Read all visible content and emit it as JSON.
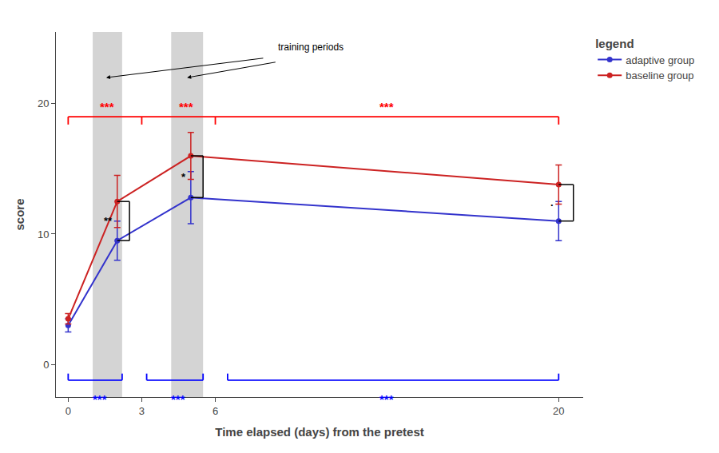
{
  "chart_data": {
    "type": "line",
    "xlabel": "Time elapsed (days) from the pretest",
    "ylabel": "score",
    "x": [
      0,
      2,
      5,
      20
    ],
    "series": [
      {
        "name": "adaptive group",
        "color": "#3333CC",
        "values": [
          3.0,
          9.5,
          12.8,
          11.0
        ],
        "errors": [
          0.5,
          1.5,
          2.0,
          1.5
        ]
      },
      {
        "name": "baseline group",
        "color": "#CC2222",
        "values": [
          3.5,
          12.5,
          16.0,
          13.8
        ],
        "errors": [
          0.4,
          2.0,
          1.8,
          1.5
        ]
      }
    ],
    "marker": "circle",
    "xlim": [
      -0.5,
      21.0
    ],
    "ylim": [
      -2.5,
      25.5
    ],
    "xticks": [
      0,
      3,
      6,
      20
    ],
    "yticks": [
      0,
      10,
      20
    ],
    "grid": false,
    "legend": "right",
    "legend_title": "legend",
    "shaded_regions": {
      "color": "#AAAAAA",
      "spans": [
        [
          1.0,
          2.2
        ],
        [
          4.2,
          5.5
        ]
      ]
    },
    "red_bracket": {
      "color": "red",
      "y": 19.0,
      "drop": 0.6,
      "divisions": [
        0,
        3,
        6,
        20
      ],
      "labels": [
        {
          "x": 1.6,
          "text": "***"
        },
        {
          "x": 4.8,
          "text": "***"
        },
        {
          "x": 13.0,
          "text": "***"
        }
      ]
    },
    "blue_brackets": {
      "color": "blue",
      "y": -1.2,
      "rise": 0.5,
      "label_y": -2.0,
      "spans": [
        {
          "x1": 0.0,
          "x2": 2.2,
          "label_x": 1.3,
          "text": "***"
        },
        {
          "x1": 3.2,
          "x2": 5.5,
          "label_x": 4.5,
          "text": "***"
        },
        {
          "x1": 6.5,
          "x2": 20.0,
          "label_x": 13.0,
          "text": "***"
        }
      ]
    },
    "comparison_brackets": {
      "color": "black",
      "items": [
        {
          "x_left": 2.0,
          "x_right": 2.5,
          "y_bottom": 9.5,
          "y_top": 12.5,
          "text": "**"
        },
        {
          "x_left": 5.0,
          "x_right": 5.5,
          "y_bottom": 12.8,
          "y_top": 16.0,
          "text": "*"
        },
        {
          "x_left": 20.0,
          "x_right": 20.6,
          "y_bottom": 11.0,
          "y_top": 13.8,
          "text": "."
        }
      ]
    },
    "annotation": {
      "text": "training periods",
      "x": 8.5,
      "y": 23.8,
      "arrows": [
        {
          "tail": [
            8.0,
            23.5
          ],
          "head": [
            1.55,
            22.0
          ]
        },
        {
          "tail": [
            8.5,
            23.2
          ],
          "head": [
            4.85,
            22.0
          ]
        }
      ]
    }
  }
}
